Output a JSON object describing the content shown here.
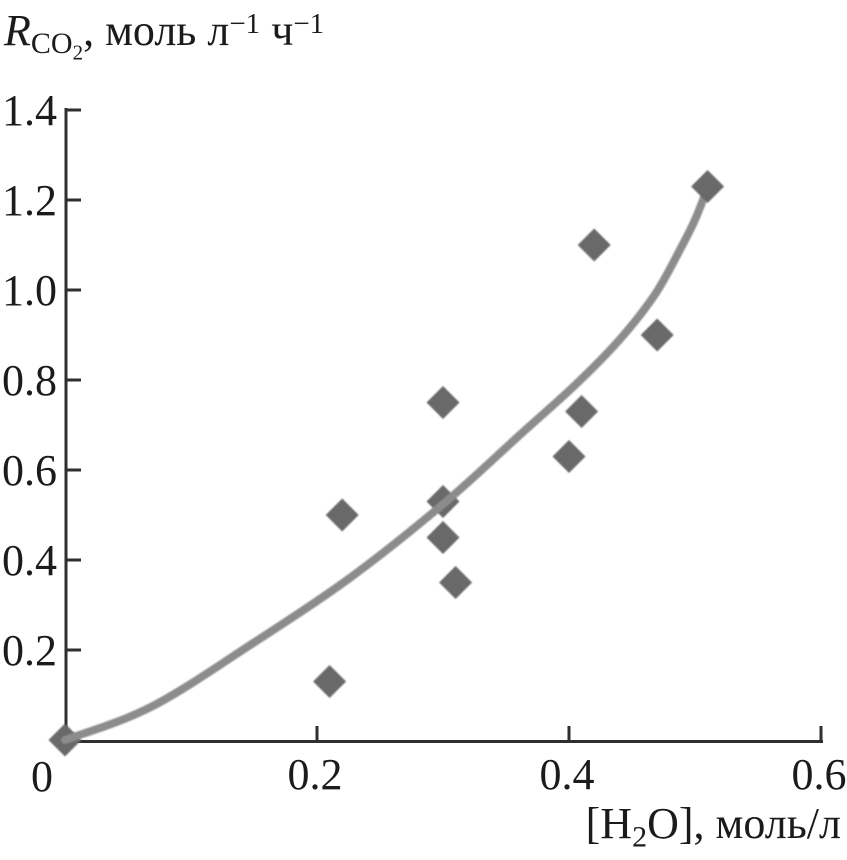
{
  "style": {
    "background": "#ffffff",
    "axis_color": "#2f2f2f",
    "text_color": "#1b1b1b",
    "curve_color": "#8c8c8c",
    "marker_color": "#696969"
  },
  "titles": {
    "y": {
      "symbol": "R",
      "symbol_sub": "CO",
      "symbol_subsub": "2",
      "unit_pre": ", моль л",
      "sup1": "−1",
      "unit_mid": " ч",
      "sup2": "−1"
    },
    "x": {
      "pre": "[H",
      "sub": "2",
      "post": "O], моль/л"
    }
  },
  "chart_data": {
    "type": "scatter",
    "title": "",
    "xlabel": "[H₂O], моль/л",
    "ylabel": "R_CO₂, моль л⁻¹ ч⁻¹",
    "xlim": [
      0,
      0.6
    ],
    "ylim": [
      0,
      1.4
    ],
    "grid": false,
    "legend": null,
    "origin_label": "0",
    "x_ticks": [
      0.2,
      0.4,
      0.6
    ],
    "x_tick_labels": [
      "0.2",
      "0.4",
      "0.6"
    ],
    "y_ticks": [
      0.2,
      0.4,
      0.6,
      0.8,
      1.0,
      1.2,
      1.4
    ],
    "y_tick_labels": [
      "0.2",
      "0.4",
      "0.6",
      "0.8",
      "1.0",
      "1.2",
      "1.4"
    ],
    "marker": "diamond",
    "points": [
      [
        0.0,
        0.0
      ],
      [
        0.21,
        0.13
      ],
      [
        0.22,
        0.5
      ],
      [
        0.3,
        0.75
      ],
      [
        0.3,
        0.53
      ],
      [
        0.3,
        0.45
      ],
      [
        0.31,
        0.35
      ],
      [
        0.4,
        0.63
      ],
      [
        0.41,
        0.73
      ],
      [
        0.42,
        1.1
      ],
      [
        0.47,
        0.9
      ],
      [
        0.51,
        1.23
      ]
    ],
    "trend": [
      [
        0.0,
        0.0
      ],
      [
        0.068,
        0.073
      ],
      [
        0.147,
        0.211
      ],
      [
        0.226,
        0.36
      ],
      [
        0.3,
        0.524
      ],
      [
        0.361,
        0.678
      ],
      [
        0.405,
        0.789
      ],
      [
        0.44,
        0.889
      ],
      [
        0.468,
        0.989
      ],
      [
        0.488,
        1.089
      ],
      [
        0.5,
        1.156
      ],
      [
        0.51,
        1.227
      ]
    ]
  }
}
